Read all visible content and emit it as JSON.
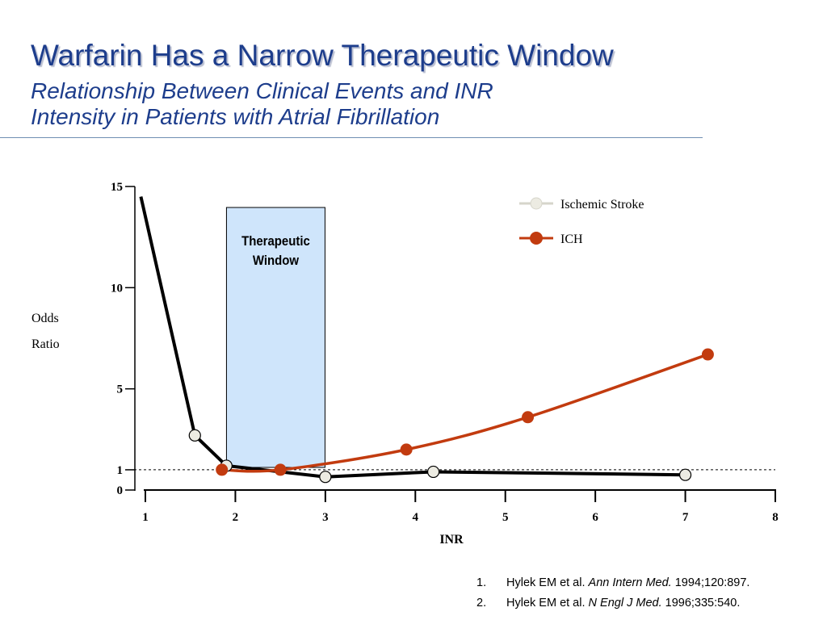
{
  "header": {
    "title": "Warfarin Has a Narrow Therapeutic Window",
    "subtitle_line1": "Relationship Between Clinical Events and INR",
    "subtitle_line2": "Intensity in Patients with Atrial Fibrillation"
  },
  "chart_data": {
    "type": "line",
    "xlabel": "INR",
    "ylabel_line1": "Odds",
    "ylabel_line2": "Ratio",
    "xlim": [
      1,
      8
    ],
    "ylim": [
      0,
      15
    ],
    "x_ticks": [
      1,
      2,
      3,
      4,
      5,
      6,
      7,
      8
    ],
    "y_ticks": [
      0,
      1,
      5,
      10,
      15
    ],
    "reference_line": {
      "y": 1,
      "style": "dashed"
    },
    "shaded_region": {
      "label_line1": "Therapeutic",
      "label_line2": "Window",
      "x_from": 2.0,
      "x_to": 3.05,
      "color": "#cfe5fb"
    },
    "legend": {
      "placement": "top-right"
    },
    "series": [
      {
        "name": "Ischemic Stroke",
        "line_color": "#000000",
        "marker_fill": "#ecebe2",
        "points": [
          [
            1.55,
            2.7
          ],
          [
            1.9,
            1.2
          ],
          [
            3.0,
            0.65
          ],
          [
            4.2,
            0.9
          ],
          [
            7.0,
            0.75
          ]
        ],
        "line": [
          [
            0.95,
            14.5
          ],
          [
            1.55,
            2.7
          ],
          [
            1.9,
            1.2
          ],
          [
            3.0,
            0.65
          ],
          [
            4.2,
            0.9
          ],
          [
            7.0,
            0.75
          ]
        ]
      },
      {
        "name": "ICH",
        "line_color": "#c23b0f",
        "marker_fill": "#c23b0f",
        "points": [
          [
            1.85,
            1.0
          ],
          [
            2.5,
            1.0
          ],
          [
            3.9,
            2.0
          ],
          [
            5.25,
            3.6
          ],
          [
            7.25,
            6.7
          ]
        ]
      }
    ]
  },
  "references": [
    {
      "num": "1.",
      "authors": "Hylek EM et al.",
      "journal": "Ann Intern Med.",
      "citation": "1994;120:897."
    },
    {
      "num": "2.",
      "authors": "Hylek EM et al.",
      "journal": "N Engl J Med.",
      "citation": "1996;335:540."
    }
  ]
}
